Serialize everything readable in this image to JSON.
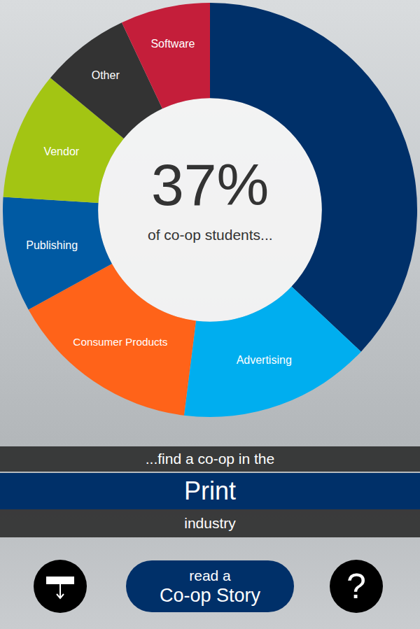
{
  "chart_data": {
    "type": "pie",
    "categories": [
      "Print",
      "Advertising",
      "Consumer Products",
      "Publishing",
      "Vendor",
      "Other",
      "Software"
    ],
    "values": [
      37,
      15,
      15,
      9,
      10,
      7,
      7
    ],
    "colors": [
      "#003069",
      "#00aeef",
      "#ff6319",
      "#005aa3",
      "#a3c513",
      "#333333",
      "#c41e3a"
    ],
    "annotations": [
      {
        "value": 37,
        "text": "37%"
      },
      {
        "text": "of co-op students..."
      }
    ]
  },
  "caption": {
    "lead": "...find a co-op in the",
    "highlight": "Print",
    "tail": "industry"
  },
  "buttons": {
    "story": [
      "read a",
      "Co-op Story"
    ],
    "help": "?"
  }
}
